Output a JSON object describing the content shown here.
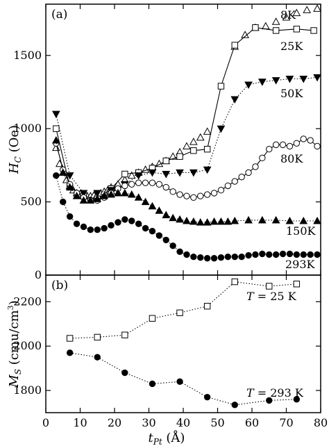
{
  "chart_data": [
    {
      "panel": "(a)",
      "type": "line",
      "ylabel_main": "H",
      "ylabel_sub": "C",
      "ylabel_unit": " (Oe)",
      "xlim": [
        0,
        80
      ],
      "ylim": [
        0,
        1850
      ],
      "x_ticks": [
        0,
        10,
        20,
        30,
        40,
        50,
        60,
        70,
        80
      ],
      "y_ticks": [
        0,
        500,
        1000,
        1500
      ],
      "series": [
        {
          "name": "8K",
          "marker": "triangle-open",
          "line": "none",
          "x": [
            3,
            4,
            5,
            6,
            7,
            8,
            9,
            10,
            11,
            12,
            13,
            14,
            15,
            16,
            17,
            18,
            19,
            21,
            23,
            25,
            27,
            29,
            31,
            33,
            35,
            37,
            39,
            41,
            43,
            45,
            47,
            55,
            58,
            61,
            64,
            67,
            70,
            73,
            76,
            79
          ],
          "y": [
            870,
            760,
            700,
            650,
            610,
            580,
            560,
            555,
            545,
            540,
            540,
            545,
            550,
            560,
            570,
            580,
            600,
            620,
            650,
            680,
            700,
            720,
            740,
            760,
            780,
            810,
            840,
            880,
            910,
            940,
            980,
            1560,
            1640,
            1690,
            1700,
            1730,
            1760,
            1790,
            1810,
            1820
          ]
        },
        {
          "name": "25K",
          "marker": "square-open",
          "line": "solid",
          "x": [
            3,
            7,
            11,
            15,
            19,
            23,
            27,
            31,
            35,
            39,
            43,
            47,
            51,
            55,
            61,
            67,
            73,
            78
          ],
          "y": [
            1000,
            600,
            540,
            520,
            590,
            690,
            700,
            730,
            780,
            810,
            850,
            860,
            1290,
            1570,
            1690,
            1670,
            1680,
            1670
          ]
        },
        {
          "name": "50K",
          "marker": "triangle-down-filled",
          "line": "dotted",
          "x": [
            3,
            7,
            11,
            15,
            19,
            23,
            27,
            31,
            35,
            39,
            43,
            47,
            51,
            55,
            59,
            63,
            67,
            71,
            75,
            79
          ],
          "y": [
            1100,
            680,
            560,
            560,
            580,
            620,
            680,
            700,
            690,
            700,
            700,
            720,
            1000,
            1200,
            1300,
            1320,
            1330,
            1340,
            1340,
            1350
          ]
        },
        {
          "name": "80K",
          "marker": "circle-open",
          "line": "solid",
          "x": [
            3,
            5,
            7,
            9,
            11,
            13,
            15,
            17,
            19,
            21,
            23,
            25,
            27,
            29,
            31,
            33,
            35,
            37,
            39,
            41,
            43,
            45,
            47,
            49,
            51,
            53,
            55,
            57,
            59,
            61,
            63,
            65,
            67,
            69,
            71,
            73,
            75,
            77,
            79
          ],
          "y": [
            900,
            720,
            620,
            560,
            530,
            510,
            510,
            530,
            560,
            590,
            610,
            620,
            630,
            630,
            630,
            620,
            600,
            570,
            550,
            540,
            530,
            540,
            550,
            560,
            580,
            610,
            640,
            670,
            700,
            740,
            800,
            860,
            890,
            890,
            880,
            900,
            930,
            920,
            880
          ]
        },
        {
          "name": "150K",
          "marker": "triangle-filled",
          "line": "dotted",
          "x": [
            3,
            5,
            7,
            9,
            11,
            13,
            15,
            17,
            19,
            21,
            23,
            25,
            27,
            29,
            31,
            33,
            35,
            37,
            39,
            41,
            43,
            45,
            47,
            49,
            51,
            53,
            55,
            59,
            63,
            67,
            71,
            75,
            79
          ],
          "y": [
            920,
            700,
            600,
            540,
            510,
            510,
            520,
            540,
            550,
            560,
            560,
            550,
            530,
            500,
            470,
            440,
            410,
            390,
            380,
            370,
            365,
            360,
            360,
            365,
            365,
            365,
            370,
            375,
            375,
            375,
            370,
            370,
            370
          ]
        },
        {
          "name": "293K",
          "marker": "circle-filled",
          "line": "dotted",
          "x": [
            3,
            5,
            7,
            9,
            11,
            13,
            15,
            17,
            19,
            21,
            23,
            25,
            27,
            29,
            31,
            33,
            35,
            37,
            39,
            41,
            43,
            45,
            47,
            49,
            51,
            53,
            55,
            57,
            59,
            61,
            63,
            65,
            67,
            69,
            71,
            73,
            75,
            77,
            79
          ],
          "y": [
            680,
            500,
            400,
            350,
            330,
            310,
            310,
            320,
            340,
            360,
            380,
            370,
            350,
            320,
            300,
            270,
            240,
            200,
            160,
            140,
            125,
            120,
            115,
            115,
            120,
            125,
            125,
            125,
            135,
            140,
            145,
            140,
            140,
            145,
            145,
            140,
            140,
            140,
            140
          ]
        }
      ]
    },
    {
      "panel": "(b)",
      "type": "line",
      "ylabel_main": "M",
      "ylabel_sub": "S",
      "ylabel_unit": " (cmu/cm",
      "ylabel_sup": "3",
      "ylabel_close": ")",
      "xlabel_main": "t",
      "xlabel_sub": "Pt",
      "xlabel_unit": " (Å)",
      "xlim": [
        0,
        80
      ],
      "ylim": [
        1700,
        2320
      ],
      "x_ticks": [
        0,
        10,
        20,
        30,
        40,
        50,
        60,
        70,
        80
      ],
      "y_ticks": [
        1800,
        2000,
        2200
      ],
      "series": [
        {
          "name": "T = 25 K",
          "label_main": "T",
          "label_rest": " = 25 K",
          "marker": "square-open",
          "line": "dotted",
          "x": [
            7,
            15,
            23,
            31,
            39,
            47,
            55,
            65,
            73
          ],
          "y": [
            2035,
            2040,
            2050,
            2125,
            2150,
            2180,
            2290,
            2270,
            2280
          ]
        },
        {
          "name": "T = 293 K",
          "label_main": "T",
          "label_rest": " = 293 K",
          "marker": "circle-filled",
          "line": "dotted",
          "x": [
            7,
            15,
            23,
            31,
            39,
            47,
            55,
            65,
            73
          ],
          "y": [
            1970,
            1950,
            1880,
            1830,
            1840,
            1770,
            1735,
            1755,
            1760
          ]
        }
      ]
    }
  ]
}
